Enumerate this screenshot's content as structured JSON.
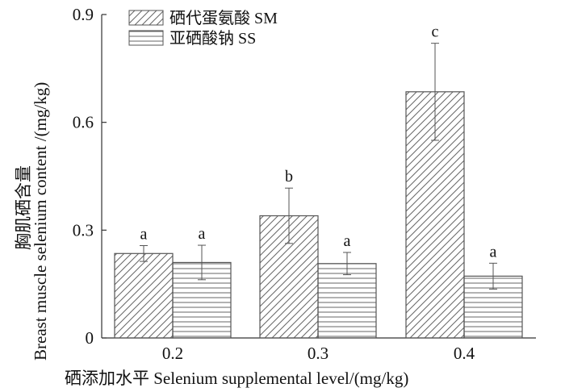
{
  "chart_data": {
    "type": "bar",
    "categories": [
      "0.2",
      "0.3",
      "0.4"
    ],
    "series": [
      {
        "name": "硒代蛋氨酸 SM",
        "pattern": "diagonal-hatch",
        "values": [
          0.235,
          0.34,
          0.685
        ],
        "error": [
          0.022,
          0.077,
          0.135
        ],
        "labels": [
          "a",
          "b",
          "c"
        ]
      },
      {
        "name": "亚硒酸钠 SS",
        "pattern": "horizontal-hatch",
        "values": [
          0.21,
          0.207,
          0.172
        ],
        "error": [
          0.048,
          0.031,
          0.036
        ],
        "labels": [
          "a",
          "a",
          "a"
        ]
      }
    ],
    "ylim": [
      0,
      0.9
    ],
    "yticks": [
      "0",
      "0.3",
      "0.6",
      "0.9"
    ],
    "xlabel": "硒添加水平 Selenium supplemental level/(mg/kg)",
    "ylabel_cn": "胸肌硒含量",
    "ylabel_en": "Breast muscle selenium content /(mg/kg)",
    "legend_position": "top-left",
    "grid": false,
    "colors": {
      "stroke": "#555555",
      "text": "#111111",
      "background": "#ffffff"
    }
  }
}
